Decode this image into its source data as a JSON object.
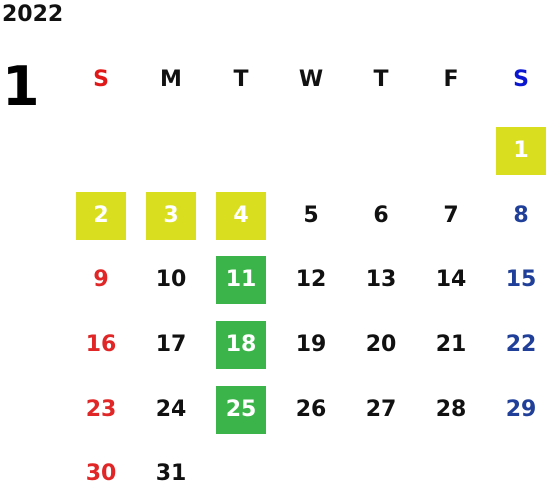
{
  "calendar": {
    "year": "2022",
    "month": "1",
    "weekdays": [
      {
        "label": "S",
        "color": "#e11818"
      },
      {
        "label": "M",
        "color": "#111111"
      },
      {
        "label": "T",
        "color": "#111111"
      },
      {
        "label": "W",
        "color": "#111111"
      },
      {
        "label": "T",
        "color": "#111111"
      },
      {
        "label": "F",
        "color": "#111111"
      },
      {
        "label": "S",
        "color": "#0a16cf"
      }
    ],
    "colors": {
      "sunday": "#e02626",
      "saturday": "#1f3f99",
      "weekday": "#111111",
      "holiday_bg": "#d9df1f",
      "highlight_bg": "#3bb54a",
      "highlight_text": "#ffffff"
    },
    "days": [
      {
        "day": "1",
        "style": "holiday"
      },
      {
        "day": "2",
        "style": "holiday"
      },
      {
        "day": "3",
        "style": "holiday"
      },
      {
        "day": "4",
        "style": "holiday"
      },
      {
        "day": "5",
        "style": "normal"
      },
      {
        "day": "6",
        "style": "normal"
      },
      {
        "day": "7",
        "style": "normal"
      },
      {
        "day": "8",
        "style": "normal"
      },
      {
        "day": "9",
        "style": "normal"
      },
      {
        "day": "10",
        "style": "normal"
      },
      {
        "day": "11",
        "style": "highlight"
      },
      {
        "day": "12",
        "style": "normal"
      },
      {
        "day": "13",
        "style": "normal"
      },
      {
        "day": "14",
        "style": "normal"
      },
      {
        "day": "15",
        "style": "normal"
      },
      {
        "day": "16",
        "style": "normal"
      },
      {
        "day": "17",
        "style": "normal"
      },
      {
        "day": "18",
        "style": "highlight"
      },
      {
        "day": "19",
        "style": "normal"
      },
      {
        "day": "20",
        "style": "normal"
      },
      {
        "day": "21",
        "style": "normal"
      },
      {
        "day": "22",
        "style": "normal"
      },
      {
        "day": "23",
        "style": "normal"
      },
      {
        "day": "24",
        "style": "normal"
      },
      {
        "day": "25",
        "style": "highlight"
      },
      {
        "day": "26",
        "style": "normal"
      },
      {
        "day": "27",
        "style": "normal"
      },
      {
        "day": "28",
        "style": "normal"
      },
      {
        "day": "29",
        "style": "normal"
      },
      {
        "day": "30",
        "style": "normal"
      },
      {
        "day": "31",
        "style": "normal"
      }
    ]
  }
}
